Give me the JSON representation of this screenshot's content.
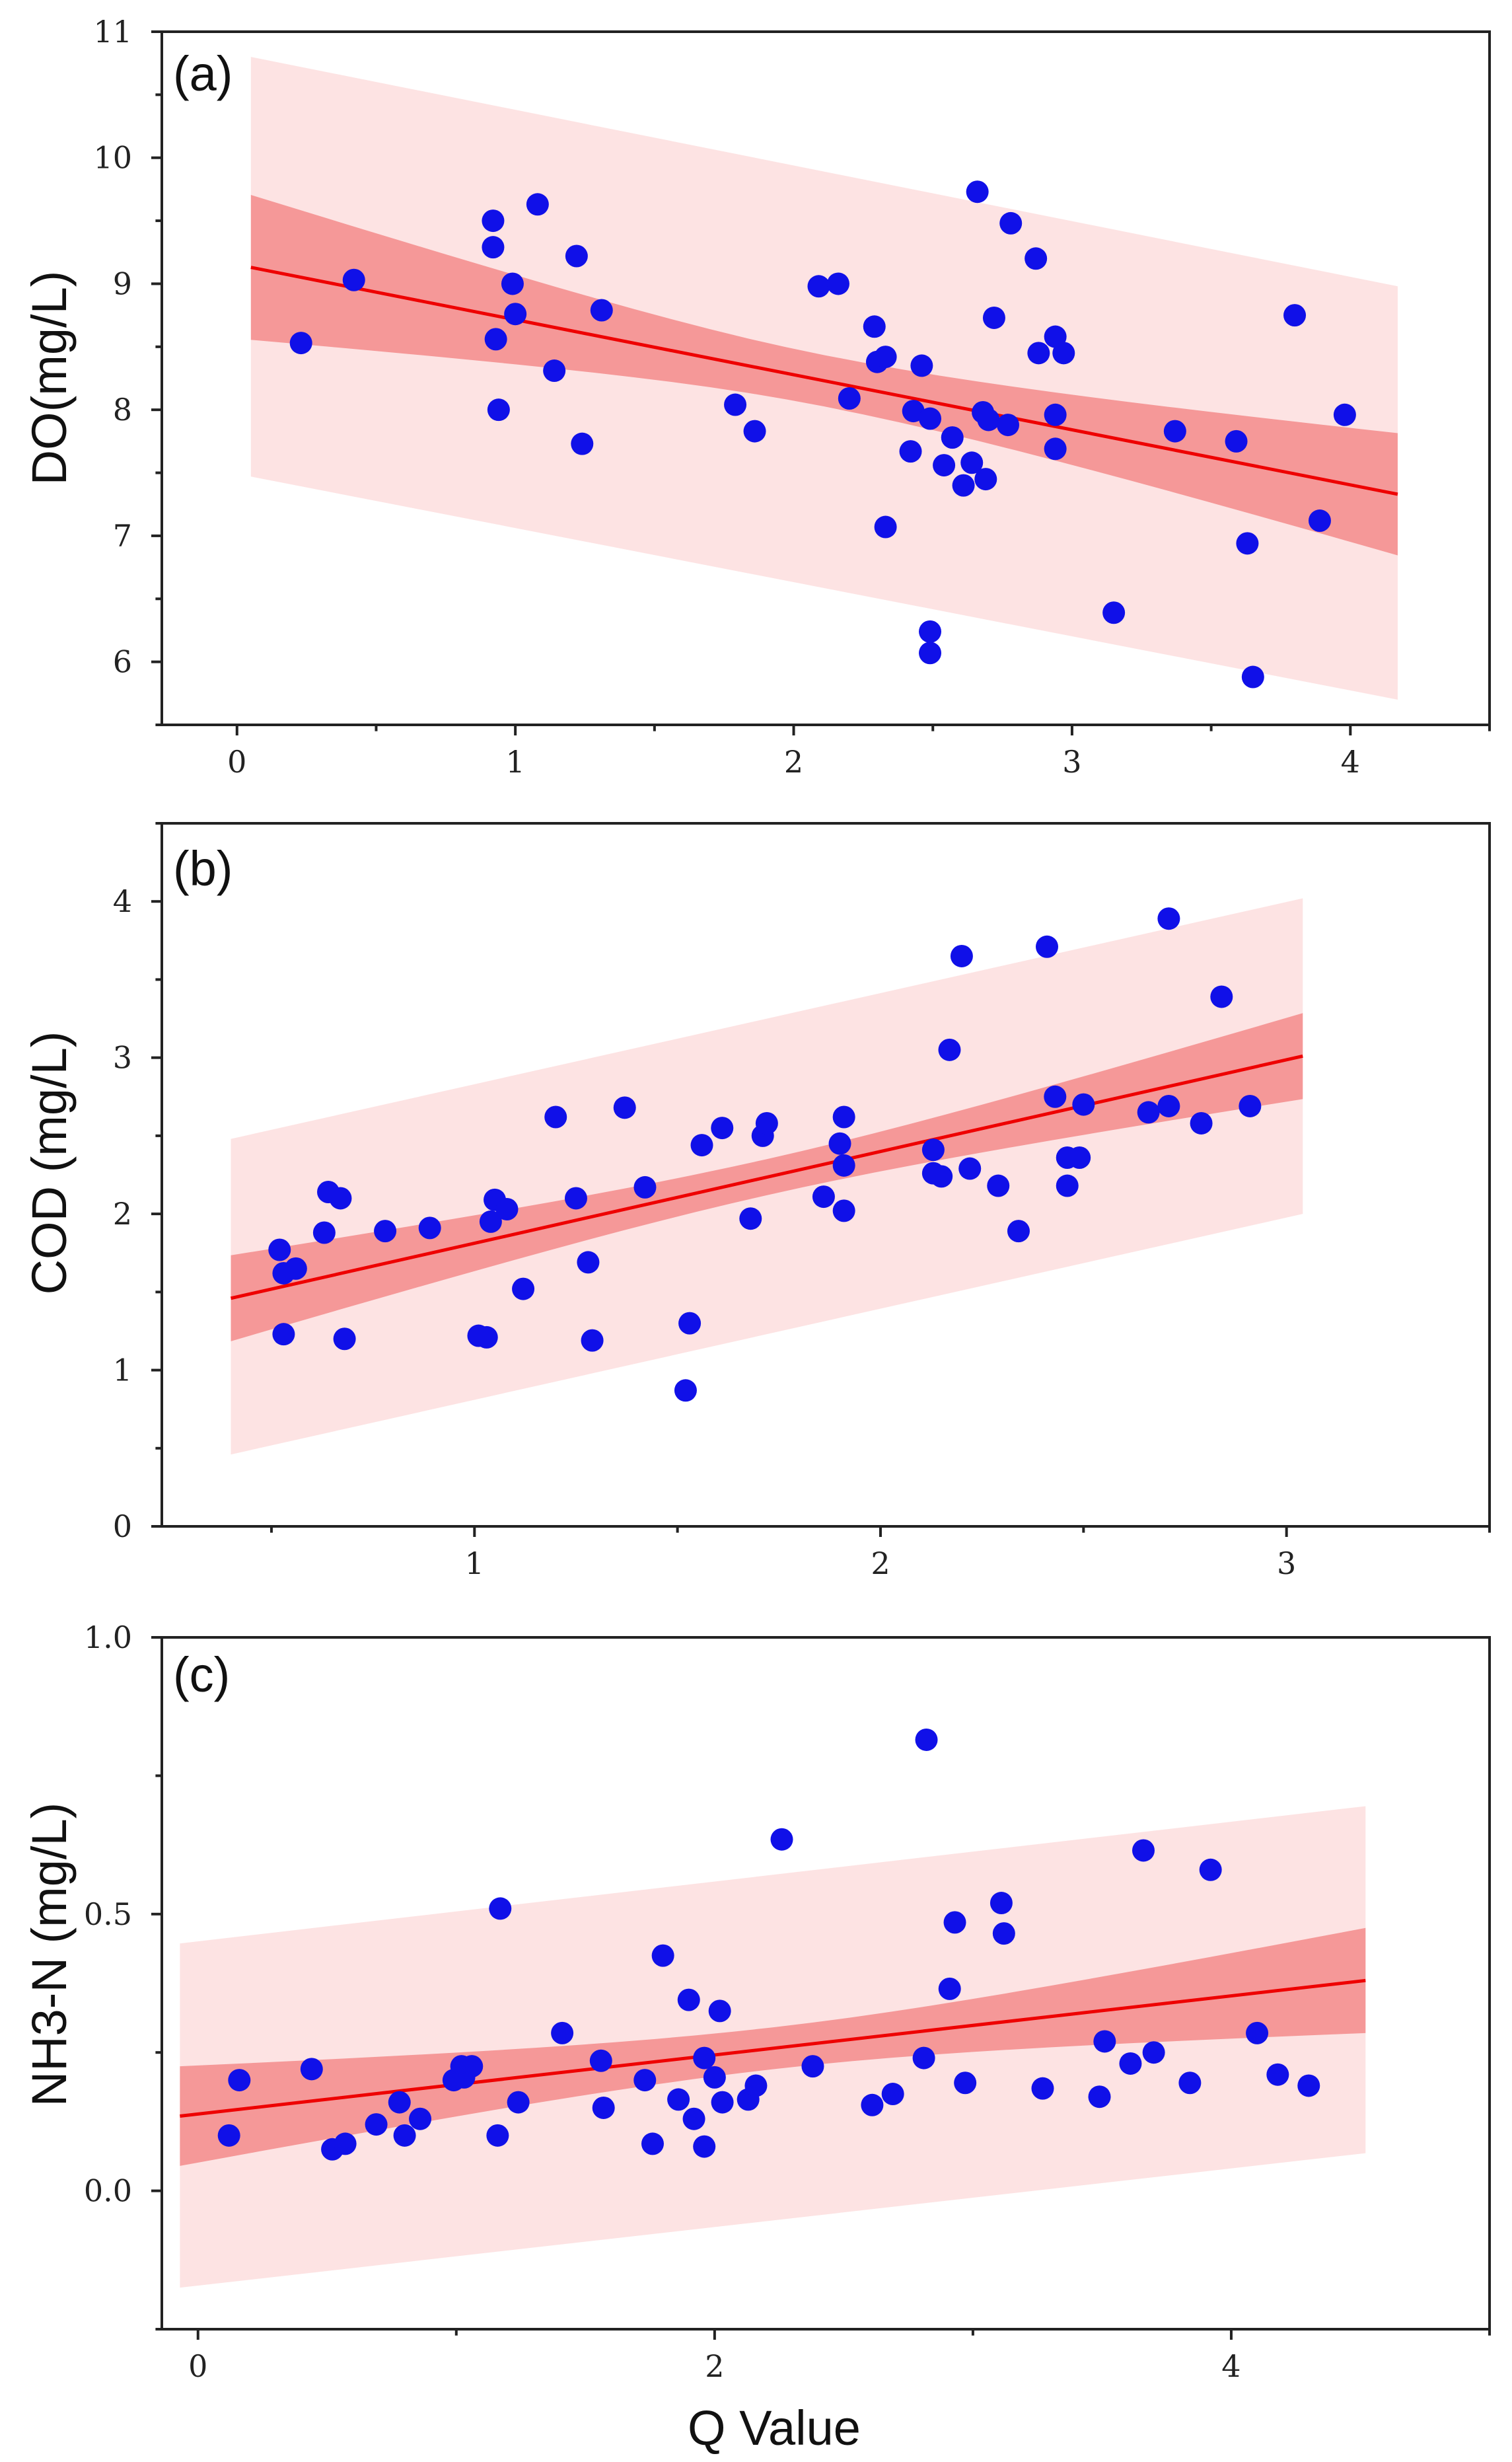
{
  "chart_data": [
    {
      "type": "scatter",
      "panel_label": "(a)",
      "ylabel": "DO(mg/L)",
      "xlabel": "",
      "xlim": [
        -0.27,
        4.5
      ],
      "ylim": [
        5.5,
        11
      ],
      "xticks": [
        0,
        1,
        2,
        3,
        4
      ],
      "yticks": [
        6,
        7,
        8,
        9,
        10,
        11
      ],
      "grid": false,
      "fit": {
        "x0": 0.05,
        "y0": 9.13,
        "x1": 4.17,
        "y1": 7.33
      },
      "ci_band": {
        "x": [
          0.05,
          4.17
        ],
        "upper": [
          9.7,
          7.82
        ],
        "lower": [
          8.55,
          6.85
        ]
      },
      "pi_band": {
        "x": [
          0.05,
          4.17
        ],
        "upper": [
          10.8,
          8.98
        ],
        "lower": [
          7.47,
          5.7
        ]
      },
      "points": [
        {
          "x": 0.23,
          "y": 8.53
        },
        {
          "x": 0.42,
          "y": 9.03
        },
        {
          "x": 0.92,
          "y": 9.5
        },
        {
          "x": 0.92,
          "y": 9.29
        },
        {
          "x": 0.93,
          "y": 8.56
        },
        {
          "x": 0.94,
          "y": 8.0
        },
        {
          "x": 0.99,
          "y": 9.0
        },
        {
          "x": 1.0,
          "y": 8.76
        },
        {
          "x": 1.08,
          "y": 9.63
        },
        {
          "x": 1.14,
          "y": 8.31
        },
        {
          "x": 1.22,
          "y": 9.22
        },
        {
          "x": 1.24,
          "y": 7.73
        },
        {
          "x": 1.31,
          "y": 8.79
        },
        {
          "x": 1.79,
          "y": 8.04
        },
        {
          "x": 1.86,
          "y": 7.83
        },
        {
          "x": 2.09,
          "y": 8.98
        },
        {
          "x": 2.16,
          "y": 9.0
        },
        {
          "x": 2.2,
          "y": 8.09
        },
        {
          "x": 2.29,
          "y": 8.66
        },
        {
          "x": 2.3,
          "y": 8.38
        },
        {
          "x": 2.33,
          "y": 8.42
        },
        {
          "x": 2.33,
          "y": 7.07
        },
        {
          "x": 2.42,
          "y": 7.67
        },
        {
          "x": 2.43,
          "y": 7.99
        },
        {
          "x": 2.46,
          "y": 8.35
        },
        {
          "x": 2.49,
          "y": 7.93
        },
        {
          "x": 2.49,
          "y": 6.24
        },
        {
          "x": 2.49,
          "y": 6.07
        },
        {
          "x": 2.54,
          "y": 7.56
        },
        {
          "x": 2.57,
          "y": 7.78
        },
        {
          "x": 2.61,
          "y": 7.4
        },
        {
          "x": 2.64,
          "y": 7.58
        },
        {
          "x": 2.66,
          "y": 9.73
        },
        {
          "x": 2.68,
          "y": 7.98
        },
        {
          "x": 2.69,
          "y": 7.45
        },
        {
          "x": 2.7,
          "y": 7.92
        },
        {
          "x": 2.72,
          "y": 8.73
        },
        {
          "x": 2.77,
          "y": 7.88
        },
        {
          "x": 2.78,
          "y": 9.48
        },
        {
          "x": 2.87,
          "y": 9.2
        },
        {
          "x": 2.88,
          "y": 8.45
        },
        {
          "x": 2.94,
          "y": 8.58
        },
        {
          "x": 2.94,
          "y": 7.96
        },
        {
          "x": 2.94,
          "y": 7.69
        },
        {
          "x": 2.97,
          "y": 8.45
        },
        {
          "x": 3.15,
          "y": 6.39
        },
        {
          "x": 3.37,
          "y": 7.83
        },
        {
          "x": 3.59,
          "y": 7.75
        },
        {
          "x": 3.63,
          "y": 6.94
        },
        {
          "x": 3.65,
          "y": 5.88
        },
        {
          "x": 3.8,
          "y": 8.75
        },
        {
          "x": 3.89,
          "y": 7.12
        },
        {
          "x": 3.98,
          "y": 7.96
        }
      ]
    },
    {
      "type": "scatter",
      "panel_label": "(b)",
      "ylabel": "COD (mg/L)",
      "xlabel": "",
      "xlim": [
        0.23,
        3.5
      ],
      "ylim": [
        0,
        4.5
      ],
      "xticks": [
        1,
        2,
        3
      ],
      "yticks": [
        0,
        1,
        2,
        3,
        4
      ],
      "grid": false,
      "fit": {
        "x0": 0.4,
        "y0": 1.46,
        "x1": 3.04,
        "y1": 3.01
      },
      "ci_band": {
        "x": [
          0.4,
          3.04
        ],
        "upper": [
          1.75,
          3.29
        ],
        "lower": [
          1.2,
          2.74
        ]
      },
      "pi_band": {
        "x": [
          0.4,
          3.04
        ],
        "upper": [
          2.48,
          4.02
        ],
        "lower": [
          0.46,
          2.0
        ]
      },
      "points": [
        {
          "x": 0.52,
          "y": 1.77
        },
        {
          "x": 0.53,
          "y": 1.23
        },
        {
          "x": 0.53,
          "y": 1.62
        },
        {
          "x": 0.56,
          "y": 1.65
        },
        {
          "x": 0.63,
          "y": 1.88
        },
        {
          "x": 0.64,
          "y": 2.14
        },
        {
          "x": 0.67,
          "y": 2.1
        },
        {
          "x": 0.68,
          "y": 1.2
        },
        {
          "x": 0.78,
          "y": 1.89
        },
        {
          "x": 0.89,
          "y": 1.91
        },
        {
          "x": 1.01,
          "y": 1.22
        },
        {
          "x": 1.03,
          "y": 1.21
        },
        {
          "x": 1.04,
          "y": 1.95
        },
        {
          "x": 1.05,
          "y": 2.09
        },
        {
          "x": 1.08,
          "y": 2.03
        },
        {
          "x": 1.12,
          "y": 1.52
        },
        {
          "x": 1.2,
          "y": 2.62
        },
        {
          "x": 1.25,
          "y": 2.1
        },
        {
          "x": 1.28,
          "y": 1.69
        },
        {
          "x": 1.29,
          "y": 1.19
        },
        {
          "x": 1.37,
          "y": 2.68
        },
        {
          "x": 1.42,
          "y": 2.17
        },
        {
          "x": 1.52,
          "y": 0.87
        },
        {
          "x": 1.53,
          "y": 1.3
        },
        {
          "x": 1.56,
          "y": 2.44
        },
        {
          "x": 1.61,
          "y": 2.55
        },
        {
          "x": 1.68,
          "y": 1.97
        },
        {
          "x": 1.71,
          "y": 2.5
        },
        {
          "x": 1.72,
          "y": 2.58
        },
        {
          "x": 1.86,
          "y": 2.11
        },
        {
          "x": 1.9,
          "y": 2.45
        },
        {
          "x": 1.91,
          "y": 2.31
        },
        {
          "x": 1.91,
          "y": 2.62
        },
        {
          "x": 1.91,
          "y": 2.02
        },
        {
          "x": 2.13,
          "y": 2.41
        },
        {
          "x": 2.13,
          "y": 2.26
        },
        {
          "x": 2.15,
          "y": 2.24
        },
        {
          "x": 2.17,
          "y": 3.05
        },
        {
          "x": 2.2,
          "y": 3.65
        },
        {
          "x": 2.22,
          "y": 2.29
        },
        {
          "x": 2.29,
          "y": 2.18
        },
        {
          "x": 2.34,
          "y": 1.89
        },
        {
          "x": 2.41,
          "y": 3.71
        },
        {
          "x": 2.43,
          "y": 2.75
        },
        {
          "x": 2.46,
          "y": 2.36
        },
        {
          "x": 2.46,
          "y": 2.18
        },
        {
          "x": 2.49,
          "y": 2.36
        },
        {
          "x": 2.5,
          "y": 2.7
        },
        {
          "x": 2.66,
          "y": 2.65
        },
        {
          "x": 2.71,
          "y": 2.69
        },
        {
          "x": 2.71,
          "y": 3.89
        },
        {
          "x": 2.79,
          "y": 2.58
        },
        {
          "x": 2.84,
          "y": 3.39
        },
        {
          "x": 2.91,
          "y": 2.69
        }
      ]
    },
    {
      "type": "scatter",
      "panel_label": "(c)",
      "ylabel": "NH3-N (mg/L)",
      "xlabel": "Q Value",
      "xlim": [
        -0.14,
        5.0
      ],
      "ylim": [
        -0.25,
        1.0
      ],
      "xticks": [
        0,
        2,
        4
      ],
      "yticks": [
        0.0,
        0.5,
        1.0
      ],
      "ytick_format": 1,
      "grid": false,
      "fit": {
        "x0": -0.07,
        "y0": 0.135,
        "x1": 4.52,
        "y1": 0.38
      },
      "ci_band": {
        "x": [
          -0.07,
          4.52
        ],
        "upper": [
          0.225,
          0.48
        ],
        "lower": [
          0.045,
          0.29
        ]
      },
      "pi_band": {
        "x": [
          -0.07,
          4.52
        ],
        "upper": [
          0.447,
          0.695
        ],
        "lower": [
          -0.175,
          0.068
        ]
      },
      "points": [
        {
          "x": 0.12,
          "y": 0.1
        },
        {
          "x": 0.16,
          "y": 0.2
        },
        {
          "x": 0.44,
          "y": 0.22
        },
        {
          "x": 0.52,
          "y": 0.075
        },
        {
          "x": 0.57,
          "y": 0.085
        },
        {
          "x": 0.69,
          "y": 0.12
        },
        {
          "x": 0.78,
          "y": 0.16
        },
        {
          "x": 0.8,
          "y": 0.1
        },
        {
          "x": 0.86,
          "y": 0.13
        },
        {
          "x": 0.99,
          "y": 0.2
        },
        {
          "x": 1.02,
          "y": 0.225
        },
        {
          "x": 1.03,
          "y": 0.205
        },
        {
          "x": 1.06,
          "y": 0.225
        },
        {
          "x": 1.16,
          "y": 0.1
        },
        {
          "x": 1.17,
          "y": 0.51
        },
        {
          "x": 1.24,
          "y": 0.16
        },
        {
          "x": 1.41,
          "y": 0.285
        },
        {
          "x": 1.56,
          "y": 0.235
        },
        {
          "x": 1.57,
          "y": 0.15
        },
        {
          "x": 1.73,
          "y": 0.2
        },
        {
          "x": 1.76,
          "y": 0.085
        },
        {
          "x": 1.8,
          "y": 0.425
        },
        {
          "x": 1.86,
          "y": 0.165
        },
        {
          "x": 1.9,
          "y": 0.345
        },
        {
          "x": 1.92,
          "y": 0.13
        },
        {
          "x": 1.96,
          "y": 0.08
        },
        {
          "x": 1.96,
          "y": 0.24
        },
        {
          "x": 2.0,
          "y": 0.205
        },
        {
          "x": 2.02,
          "y": 0.325
        },
        {
          "x": 2.03,
          "y": 0.16
        },
        {
          "x": 2.13,
          "y": 0.165
        },
        {
          "x": 2.16,
          "y": 0.19
        },
        {
          "x": 2.26,
          "y": 0.635
        },
        {
          "x": 2.38,
          "y": 0.225
        },
        {
          "x": 2.61,
          "y": 0.155
        },
        {
          "x": 2.69,
          "y": 0.175
        },
        {
          "x": 2.81,
          "y": 0.24
        },
        {
          "x": 2.82,
          "y": 0.815
        },
        {
          "x": 2.91,
          "y": 0.365
        },
        {
          "x": 2.93,
          "y": 0.485
        },
        {
          "x": 2.97,
          "y": 0.195
        },
        {
          "x": 3.11,
          "y": 0.52
        },
        {
          "x": 3.12,
          "y": 0.465
        },
        {
          "x": 3.27,
          "y": 0.185
        },
        {
          "x": 3.49,
          "y": 0.17
        },
        {
          "x": 3.51,
          "y": 0.27
        },
        {
          "x": 3.61,
          "y": 0.23
        },
        {
          "x": 3.66,
          "y": 0.615
        },
        {
          "x": 3.7,
          "y": 0.25
        },
        {
          "x": 3.84,
          "y": 0.195
        },
        {
          "x": 3.92,
          "y": 0.58
        },
        {
          "x": 4.1,
          "y": 0.285
        },
        {
          "x": 4.18,
          "y": 0.21
        },
        {
          "x": 4.3,
          "y": 0.19
        }
      ]
    }
  ],
  "colors": {
    "point": "#1010e8",
    "fit_line": "#ee0000",
    "confidence_band": "#f06a6a",
    "prediction_band": "#fcd2d2"
  }
}
